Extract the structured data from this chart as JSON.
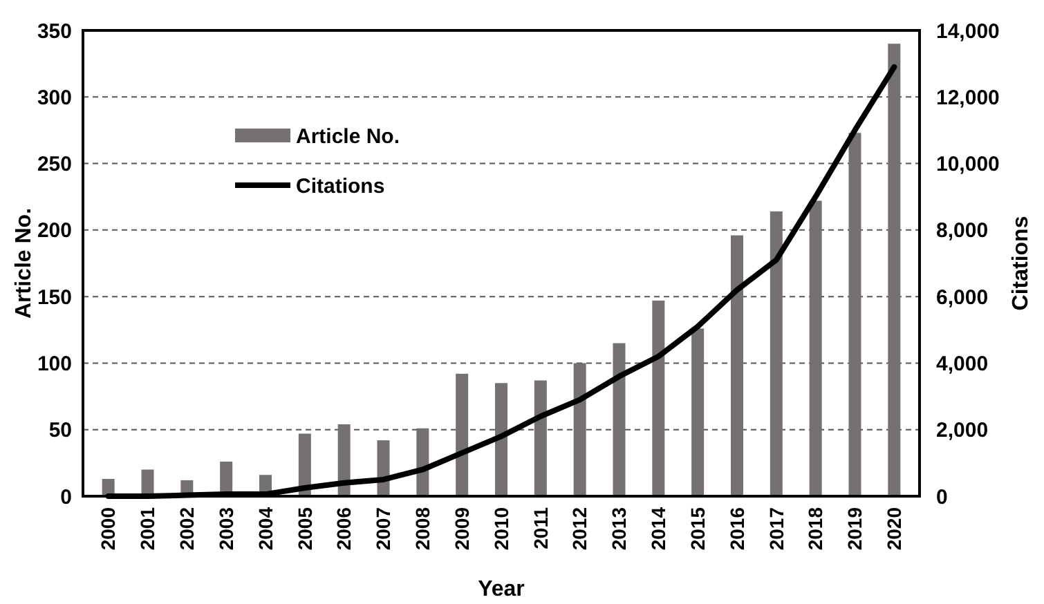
{
  "chart_data": {
    "type": "bar",
    "xlabel": "Year",
    "ylabel": "Article No.",
    "y2label": "Citations",
    "categories": [
      "2000",
      "2001",
      "2002",
      "2003",
      "2004",
      "2005",
      "2006",
      "2007",
      "2008",
      "2009",
      "2010",
      "2011",
      "2012",
      "2013",
      "2014",
      "2015",
      "2016",
      "2017",
      "2018",
      "2019",
      "2020"
    ],
    "series": [
      {
        "name": "Article No.",
        "color": "#767171",
        "values": [
          13,
          20,
          12,
          26,
          16,
          47,
          54,
          42,
          51,
          92,
          85,
          87,
          100,
          115,
          147,
          126,
          196,
          214,
          222,
          273,
          340
        ]
      },
      {
        "name": "Citations",
        "type": "line",
        "axis": "y2",
        "color": "#000000",
        "values": [
          0,
          0,
          30,
          60,
          60,
          250,
          400,
          500,
          800,
          1300,
          1800,
          2400,
          2900,
          3600,
          4200,
          5100,
          6200,
          7100,
          9000,
          11000,
          12900
        ]
      }
    ],
    "ylim": [
      0,
      350
    ],
    "yticks": [
      0,
      50,
      100,
      150,
      200,
      250,
      300,
      350
    ],
    "y2lim": [
      0,
      14000
    ],
    "y2ticks": [
      {
        "value": 0,
        "label": "0"
      },
      {
        "value": 2000,
        "label": "2,000"
      },
      {
        "value": 4000,
        "label": "4,000"
      },
      {
        "value": 6000,
        "label": "6,000"
      },
      {
        "value": 8000,
        "label": "8,000"
      },
      {
        "value": 10000,
        "label": "10,000"
      },
      {
        "value": 12000,
        "label": "12,000"
      },
      {
        "value": 14000,
        "label": "14,000"
      }
    ],
    "grid": "y",
    "legend": "top left",
    "marker": "none",
    "line_style": "solid"
  }
}
